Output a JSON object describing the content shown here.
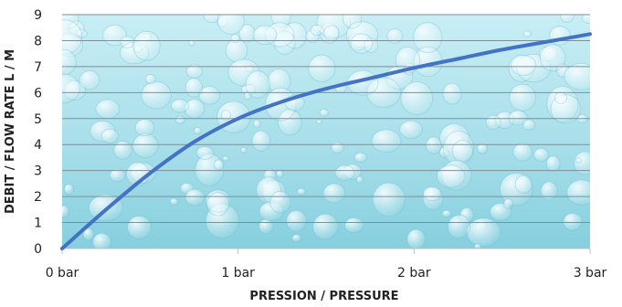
{
  "chart_data": {
    "type": "line",
    "title": "",
    "xlabel": "PRESSION  / PRESSURE",
    "ylabel": "DEBIT  / FLOW RATE  L / M",
    "x_ticks": [
      {
        "value": 0,
        "label": "0 bar"
      },
      {
        "value": 1,
        "label": "1 bar"
      },
      {
        "value": 2,
        "label": "2 bar"
      },
      {
        "value": 3,
        "label": "3 bar"
      }
    ],
    "y_ticks": [
      0,
      1,
      2,
      3,
      4,
      5,
      6,
      7,
      8,
      9
    ],
    "xlim": [
      0,
      3
    ],
    "ylim": [
      0,
      9
    ],
    "grid": "horizontal",
    "legend": "none",
    "series": [
      {
        "x": [
          0,
          0.25,
          0.5,
          0.75,
          1.0,
          1.25,
          1.5,
          1.75,
          2.0,
          2.25,
          2.5,
          2.75,
          3.0
        ],
        "values": [
          0,
          1.5,
          2.9,
          4.1,
          5.0,
          5.65,
          6.15,
          6.55,
          6.95,
          7.3,
          7.65,
          7.95,
          8.25
        ]
      }
    ],
    "colors": {
      "line": "#4472C4",
      "grid": "#7f8f99",
      "plot_bg_light": "#c9eef5",
      "plot_bg_mid": "#a8dfea",
      "plot_bg_dark": "#86cfde",
      "bubble": "#f2fbfd"
    }
  }
}
